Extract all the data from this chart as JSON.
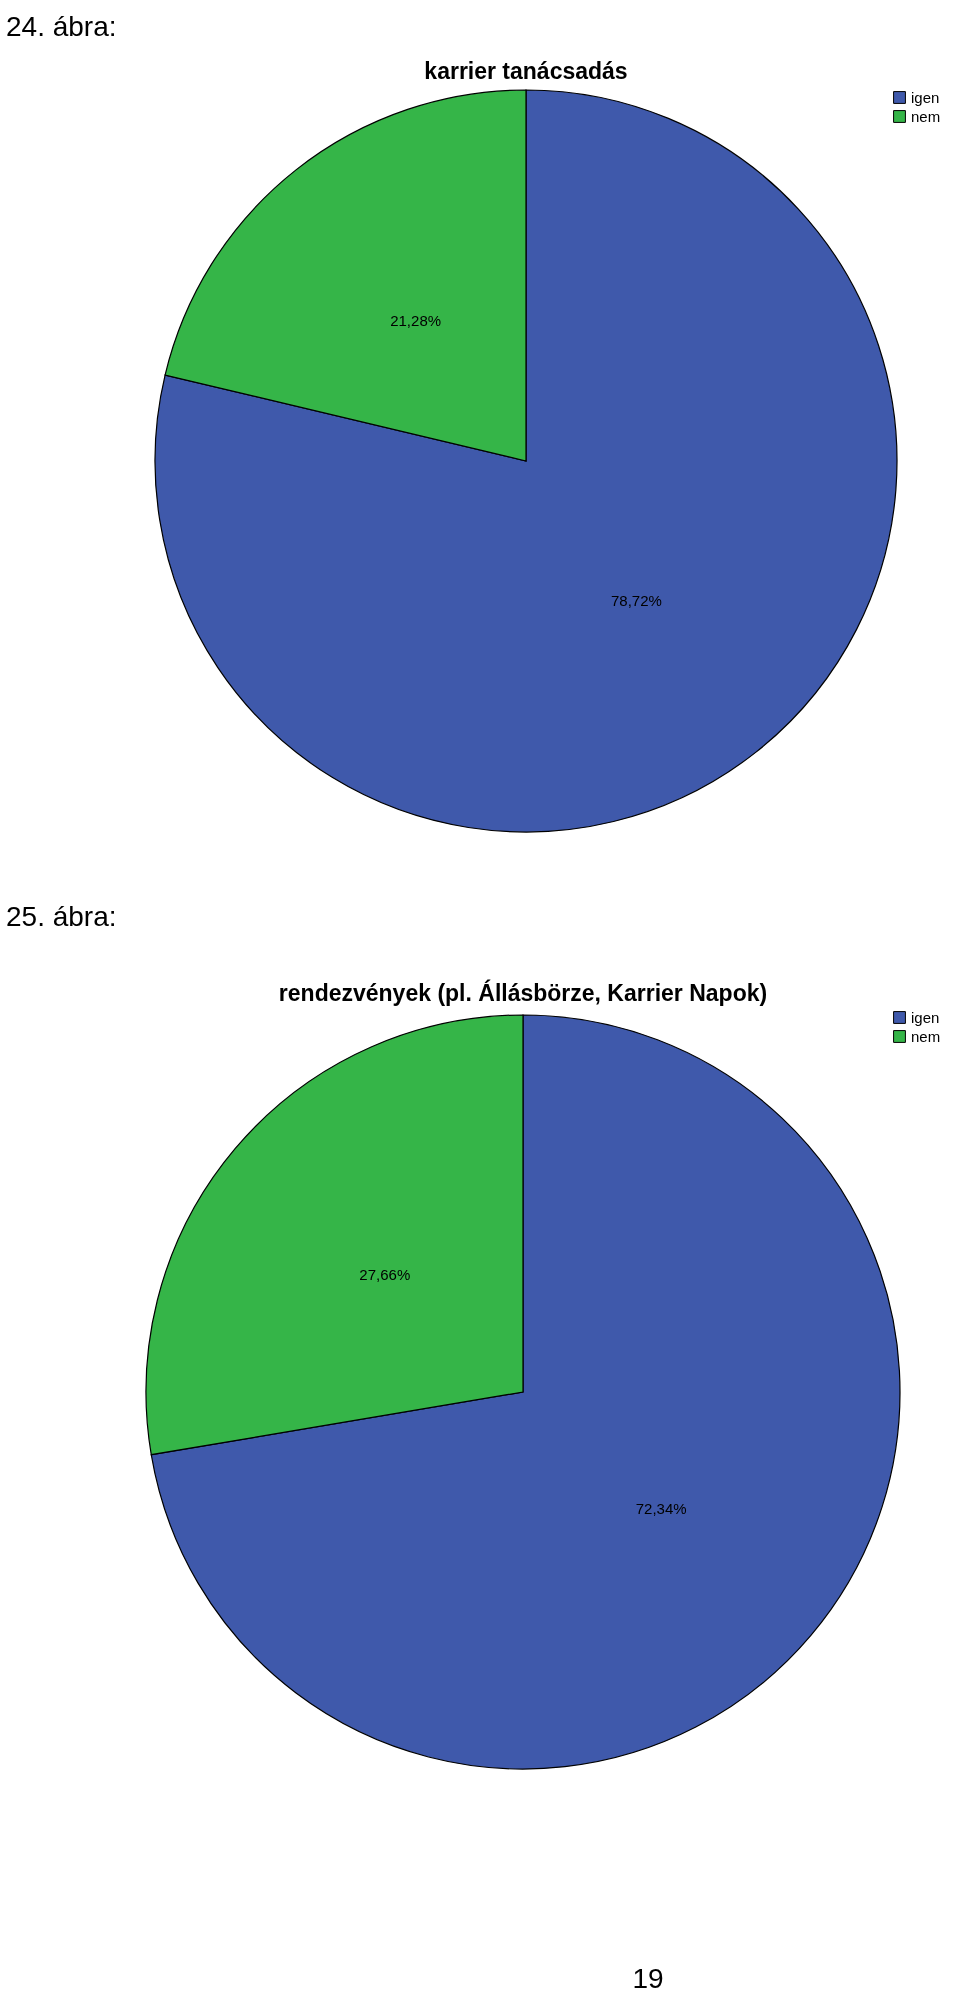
{
  "chart_data": [
    {
      "type": "pie",
      "title": "karrier tanácsadás",
      "categories": [
        "igen",
        "nem"
      ],
      "values": [
        78.72,
        21.28
      ],
      "colors": [
        "#3f59ab",
        "#35b548"
      ],
      "value_labels": [
        "78,72%",
        "21,28%"
      ],
      "legend": "top right",
      "annotations": [
        "24. ábra:"
      ]
    },
    {
      "type": "pie",
      "title": "rendezvények (pl. Állásbörze, Karrier Napok)",
      "categories": [
        "igen",
        "nem"
      ],
      "values": [
        72.34,
        27.66
      ],
      "colors": [
        "#3f59ab",
        "#35b548"
      ],
      "value_labels": [
        "72,34%",
        "27,66%"
      ],
      "legend": "top right",
      "annotations": [
        "25. ábra:",
        "19"
      ]
    }
  ]
}
